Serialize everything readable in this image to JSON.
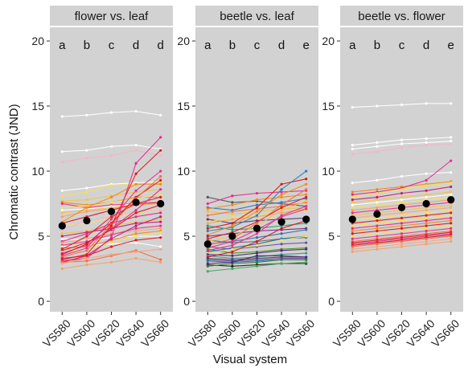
{
  "ylabel": "Chromatic contrast (JND)",
  "xlabel": "Visual system",
  "panel_bg": "#d2d2d2",
  "strip_bg": "#d2d2d2",
  "chart_data": [
    {
      "type": "line",
      "title": "flower vs. leaf",
      "categories": [
        "VS580",
        "VS600",
        "VS620",
        "VS640",
        "VS660"
      ],
      "ylim": [
        0,
        20
      ],
      "yticks": [
        0,
        5,
        10,
        15,
        20
      ],
      "letters": [
        "a",
        "b",
        "c",
        "d",
        "d"
      ],
      "means": [
        5.8,
        6.2,
        6.9,
        7.6,
        7.5
      ],
      "series": [
        {
          "color": "#ffffff",
          "values": [
            14.2,
            14.3,
            14.5,
            14.6,
            14.3
          ]
        },
        {
          "color": "#ffffff",
          "values": [
            11.5,
            11.6,
            11.9,
            12.0,
            11.7
          ]
        },
        {
          "color": "#f4b6c6",
          "values": [
            10.7,
            11.0,
            11.2,
            11.6,
            11.2
          ]
        },
        {
          "color": "#ffffff",
          "values": [
            8.5,
            8.7,
            9.0,
            9.1,
            9.2
          ]
        },
        {
          "color": "#f5e34a",
          "values": [
            8.1,
            8.4,
            8.9,
            9.0,
            9.1
          ]
        },
        {
          "color": "#f5c242",
          "values": [
            7.7,
            7.8,
            8.1,
            8.4,
            8.6
          ]
        },
        {
          "color": "#f08a1c",
          "values": [
            7.6,
            7.4,
            7.6,
            8.0,
            8.0
          ]
        },
        {
          "color": "#e8318a",
          "values": [
            7.5,
            7.2,
            7.4,
            7.5,
            7.6
          ]
        },
        {
          "color": "#f0e26a",
          "values": [
            7.2,
            7.3,
            7.6,
            7.9,
            8.2
          ]
        },
        {
          "color": "#ffffff",
          "values": [
            7.0,
            7.1,
            7.3,
            7.5,
            7.6
          ]
        },
        {
          "color": "#f5c242",
          "values": [
            6.8,
            7.0,
            7.2,
            7.4,
            7.6
          ]
        },
        {
          "color": "#f6a06a",
          "values": [
            6.5,
            6.9,
            7.1,
            7.4,
            7.5
          ]
        },
        {
          "color": "#f08a1c",
          "values": [
            6.1,
            7.2,
            8.0,
            9.0,
            9.0
          ]
        },
        {
          "color": "#d7191c",
          "values": [
            6.0,
            6.5,
            7.0,
            7.5,
            7.6
          ]
        },
        {
          "color": "#f0e26a",
          "values": [
            5.8,
            6.0,
            6.4,
            6.8,
            7.0
          ]
        },
        {
          "color": "#f4b6c6",
          "values": [
            5.5,
            6.2,
            6.5,
            6.9,
            7.0
          ]
        },
        {
          "color": "#f5c242",
          "values": [
            5.2,
            5.4,
            5.8,
            6.1,
            6.3
          ]
        },
        {
          "color": "#c51b7d",
          "values": [
            5.0,
            5.3,
            5.6,
            6.0,
            6.1
          ]
        },
        {
          "color": "#ffffff",
          "values": [
            4.8,
            4.7,
            4.9,
            5.0,
            5.0
          ]
        },
        {
          "color": "#e7298a",
          "values": [
            4.6,
            5.2,
            6.0,
            6.5,
            6.8
          ]
        },
        {
          "color": "#f4a582",
          "values": [
            4.5,
            4.8,
            5.2,
            5.4,
            5.6
          ]
        },
        {
          "color": "#e8318a",
          "values": [
            4.3,
            4.6,
            5.1,
            5.6,
            5.8
          ]
        },
        {
          "color": "#ffffff",
          "values": [
            4.2,
            4.3,
            4.4,
            4.5,
            4.2
          ]
        },
        {
          "color": "#f08a1c",
          "values": [
            4.1,
            4.2,
            4.7,
            5.2,
            5.4
          ]
        },
        {
          "color": "#e41a1c",
          "values": [
            4.0,
            5.0,
            6.5,
            7.5,
            8.0
          ]
        },
        {
          "color": "#d7191c",
          "values": [
            3.9,
            4.5,
            5.5,
            6.8,
            7.4
          ]
        },
        {
          "color": "#f0e26a",
          "values": [
            3.8,
            4.0,
            4.5,
            5.0,
            5.3
          ]
        },
        {
          "color": "#e7298a",
          "values": [
            3.7,
            4.3,
            5.6,
            7.0,
            8.6
          ]
        },
        {
          "color": "#d7191c",
          "values": [
            3.6,
            4.4,
            6.0,
            8.0,
            9.3
          ]
        },
        {
          "color": "#e8318a",
          "values": [
            3.5,
            4.1,
            6.3,
            8.5,
            10.0
          ]
        },
        {
          "color": "#f46d43",
          "values": [
            3.4,
            3.9,
            5.9,
            7.9,
            9.6
          ]
        },
        {
          "color": "#c51b7d",
          "values": [
            3.3,
            3.5,
            4.8,
            5.8,
            6.5
          ]
        },
        {
          "color": "#e41a1c",
          "values": [
            3.2,
            3.6,
            5.8,
            9.8,
            11.6
          ]
        },
        {
          "color": "#e7298a",
          "values": [
            3.1,
            3.3,
            4.9,
            10.6,
            12.6
          ]
        },
        {
          "color": "#e31a1c",
          "values": [
            3.0,
            3.5,
            4.2,
            4.7,
            4.9
          ]
        },
        {
          "color": "#f46d43",
          "values": [
            3.0,
            3.1,
            3.5,
            3.9,
            3.2
          ]
        },
        {
          "color": "#f4a582",
          "values": [
            2.9,
            3.3,
            3.6,
            3.8,
            4.0
          ]
        },
        {
          "color": "#f6a06a",
          "values": [
            2.5,
            2.8,
            3.0,
            3.3,
            3.0
          ]
        }
      ]
    },
    {
      "type": "line",
      "title": "beetle vs. leaf",
      "categories": [
        "VS580",
        "VS600",
        "VS620",
        "VS640",
        "VS660"
      ],
      "ylim": [
        0,
        20
      ],
      "yticks": [
        0,
        5,
        10,
        15,
        20
      ],
      "letters": [
        "a",
        "b",
        "c",
        "d",
        "e"
      ],
      "means": [
        4.4,
        5.0,
        5.6,
        6.1,
        6.3
      ],
      "series": [
        {
          "color": "#555555",
          "values": [
            8.0,
            7.6,
            7.7,
            7.5,
            7.3
          ]
        },
        {
          "color": "#e7298a",
          "values": [
            7.5,
            8.1,
            8.3,
            8.4,
            8.5
          ]
        },
        {
          "color": "#2c7bb6",
          "values": [
            7.2,
            7.0,
            7.4,
            7.6,
            7.9
          ]
        },
        {
          "color": "#f08a1c",
          "values": [
            7.1,
            7.4,
            7.8,
            8.0,
            8.2
          ]
        },
        {
          "color": "#e8c547",
          "values": [
            6.9,
            6.7,
            6.9,
            7.1,
            7.2
          ]
        },
        {
          "color": "#f46d43",
          "values": [
            6.6,
            6.9,
            7.1,
            7.3,
            7.6
          ]
        },
        {
          "color": "#4e3d7a",
          "values": [
            6.3,
            6.0,
            6.2,
            6.3,
            6.4
          ]
        },
        {
          "color": "#f5e34a",
          "values": [
            6.1,
            6.4,
            6.6,
            6.8,
            7.0
          ]
        },
        {
          "color": "#f6a06a",
          "values": [
            6.0,
            6.3,
            6.5,
            6.8,
            7.1
          ]
        },
        {
          "color": "#1b9e77",
          "values": [
            5.8,
            5.5,
            5.6,
            5.8,
            6.0
          ]
        },
        {
          "color": "#d7191c",
          "values": [
            5.6,
            6.0,
            7.2,
            9.0,
            9.4
          ]
        },
        {
          "color": "#377eb8",
          "values": [
            5.4,
            5.7,
            6.6,
            8.6,
            10.0
          ]
        },
        {
          "color": "#f08a1c",
          "values": [
            5.1,
            5.8,
            6.9,
            8.2,
            9.0
          ]
        },
        {
          "color": "#762a83",
          "values": [
            5.0,
            5.2,
            5.4,
            5.5,
            5.6
          ]
        },
        {
          "color": "#e41a1c",
          "values": [
            4.8,
            5.3,
            6.1,
            7.2,
            8.0
          ]
        },
        {
          "color": "#666666",
          "values": [
            4.7,
            4.5,
            4.6,
            4.8,
            4.9
          ]
        },
        {
          "color": "#f5c242",
          "values": [
            4.6,
            5.0,
            5.8,
            7.0,
            7.7
          ]
        },
        {
          "color": "#3a6fb0",
          "values": [
            4.4,
            4.6,
            4.9,
            5.2,
            5.5
          ]
        },
        {
          "color": "#f46d43",
          "values": [
            4.3,
            4.8,
            6.0,
            7.4,
            8.6
          ]
        },
        {
          "color": "#6a51a3",
          "values": [
            4.2,
            4.0,
            4.2,
            4.4,
            4.5
          ]
        },
        {
          "color": "#e7298a",
          "values": [
            4.1,
            4.6,
            5.5,
            6.5,
            7.1
          ]
        },
        {
          "color": "#4d9221",
          "values": [
            4.0,
            3.7,
            3.8,
            4.0,
            4.1
          ]
        },
        {
          "color": "#e8318a",
          "values": [
            3.9,
            4.3,
            5.2,
            6.6,
            7.3
          ]
        },
        {
          "color": "#2171b5",
          "values": [
            3.8,
            4.1,
            4.4,
            4.8,
            5.0
          ]
        },
        {
          "color": "#f0e26a",
          "values": [
            3.7,
            4.0,
            4.3,
            4.7,
            5.0
          ]
        },
        {
          "color": "#542788",
          "values": [
            3.6,
            3.5,
            3.7,
            3.9,
            4.0
          ]
        },
        {
          "color": "#35978f",
          "values": [
            3.5,
            3.3,
            3.4,
            3.6,
            3.7
          ]
        },
        {
          "color": "#d7191c",
          "values": [
            3.4,
            3.8,
            4.6,
            5.6,
            6.2
          ]
        },
        {
          "color": "#444444",
          "values": [
            3.3,
            3.2,
            3.3,
            3.4,
            3.4
          ]
        },
        {
          "color": "#6a3d9a",
          "values": [
            3.2,
            3.1,
            3.2,
            3.3,
            3.3
          ]
        },
        {
          "color": "#1f78b4",
          "values": [
            3.1,
            3.0,
            3.1,
            3.2,
            3.2
          ]
        },
        {
          "color": "#222222",
          "values": [
            2.8,
            2.7,
            2.8,
            2.9,
            2.9
          ]
        },
        {
          "color": "#3b7a3b",
          "values": [
            2.7,
            2.9,
            3.0,
            3.2,
            3.2
          ]
        },
        {
          "color": "#4b2c6f",
          "values": [
            2.9,
            3.0,
            3.5,
            3.5,
            3.4
          ]
        },
        {
          "color": "#41ab5d",
          "values": [
            2.3,
            2.5,
            2.7,
            2.9,
            3.0
          ]
        }
      ]
    },
    {
      "type": "line",
      "title": "beetle vs. flower",
      "categories": [
        "VS580",
        "VS600",
        "VS620",
        "VS640",
        "VS660"
      ],
      "ylim": [
        0,
        20
      ],
      "yticks": [
        0,
        5,
        10,
        15,
        20
      ],
      "letters": [
        "a",
        "b",
        "c",
        "d",
        "e"
      ],
      "means": [
        6.3,
        6.7,
        7.2,
        7.5,
        7.8
      ],
      "series": [
        {
          "color": "#ffffff",
          "values": [
            14.9,
            15.0,
            15.1,
            15.2,
            15.2
          ]
        },
        {
          "color": "#ffffff",
          "values": [
            12.0,
            12.2,
            12.4,
            12.5,
            12.6
          ]
        },
        {
          "color": "#ffffff",
          "values": [
            11.7,
            11.9,
            12.1,
            12.2,
            12.3
          ]
        },
        {
          "color": "#f4b6c6",
          "values": [
            11.3,
            11.5,
            11.8,
            12.0,
            12.1
          ]
        },
        {
          "color": "#ffffff",
          "values": [
            9.1,
            9.3,
            9.6,
            9.8,
            9.9
          ]
        },
        {
          "color": "#f08a1c",
          "values": [
            8.4,
            8.6,
            8.8,
            9.0,
            9.2
          ]
        },
        {
          "color": "#e7298a",
          "values": [
            8.2,
            8.4,
            8.7,
            9.3,
            10.8
          ]
        },
        {
          "color": "#f5e34a",
          "values": [
            8.0,
            8.3,
            8.6,
            8.9,
            9.1
          ]
        },
        {
          "color": "#c51b7d",
          "values": [
            7.8,
            8.0,
            8.3,
            8.5,
            8.8
          ]
        },
        {
          "color": "#f5c242",
          "values": [
            7.6,
            7.8,
            8.0,
            8.2,
            8.4
          ]
        },
        {
          "color": "#ffffff",
          "values": [
            7.4,
            7.6,
            7.8,
            8.0,
            8.2
          ]
        },
        {
          "color": "#f0e26a",
          "values": [
            7.2,
            7.4,
            7.6,
            7.8,
            8.0
          ]
        },
        {
          "color": "#f6a06a",
          "values": [
            7.0,
            7.2,
            7.4,
            7.6,
            7.8
          ]
        },
        {
          "color": "#e8318a",
          "values": [
            6.8,
            7.0,
            7.2,
            7.4,
            7.6
          ]
        },
        {
          "color": "#f5c242",
          "values": [
            6.6,
            6.8,
            7.0,
            7.2,
            7.4
          ]
        },
        {
          "color": "#f4a582",
          "values": [
            6.4,
            6.6,
            6.8,
            7.0,
            7.2
          ]
        },
        {
          "color": "#f0e26a",
          "values": [
            6.2,
            6.4,
            6.6,
            6.8,
            7.0
          ]
        },
        {
          "color": "#e41a1c",
          "values": [
            6.0,
            6.2,
            6.4,
            6.6,
            6.8
          ]
        },
        {
          "color": "#f5e34a",
          "values": [
            5.8,
            6.0,
            6.2,
            6.4,
            6.6
          ]
        },
        {
          "color": "#e7298a",
          "values": [
            5.6,
            5.8,
            6.0,
            6.2,
            6.4
          ]
        },
        {
          "color": "#f08a1c",
          "values": [
            5.4,
            5.6,
            5.8,
            6.0,
            6.2
          ]
        },
        {
          "color": "#d7191c",
          "values": [
            5.2,
            5.4,
            5.6,
            5.8,
            6.0
          ]
        },
        {
          "color": "#f0e26a",
          "values": [
            5.0,
            5.2,
            5.4,
            5.6,
            5.8
          ]
        },
        {
          "color": "#e8318a",
          "values": [
            4.8,
            5.0,
            5.2,
            5.4,
            5.6
          ]
        },
        {
          "color": "#f46d43",
          "values": [
            4.6,
            4.8,
            5.0,
            5.2,
            5.4
          ]
        },
        {
          "color": "#e41a1c",
          "values": [
            4.5,
            4.7,
            4.9,
            5.1,
            5.3
          ]
        },
        {
          "color": "#e7298a",
          "values": [
            4.4,
            4.6,
            4.8,
            5.0,
            5.2
          ]
        },
        {
          "color": "#d7191c",
          "values": [
            4.3,
            4.5,
            4.7,
            4.9,
            5.1
          ]
        },
        {
          "color": "#f46d43",
          "values": [
            4.2,
            4.4,
            4.6,
            4.8,
            5.0
          ]
        },
        {
          "color": "#f4a582",
          "values": [
            4.0,
            4.2,
            4.4,
            4.6,
            4.8
          ]
        },
        {
          "color": "#f6a06a",
          "values": [
            3.8,
            4.0,
            4.2,
            4.4,
            4.6
          ]
        }
      ]
    }
  ]
}
